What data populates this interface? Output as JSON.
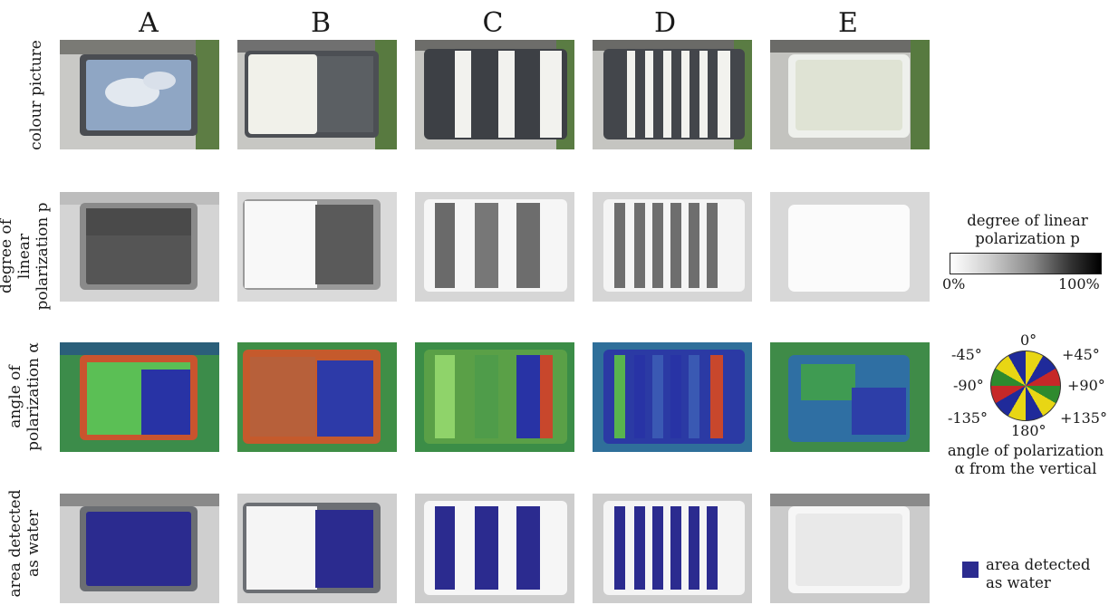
{
  "columns": [
    "A",
    "B",
    "C",
    "D",
    "E"
  ],
  "rows": [
    {
      "line1": "colour picture",
      "line2": ""
    },
    {
      "line1": "degree of linear",
      "line2": "polarization p"
    },
    {
      "line1": "angle of",
      "line2": "polarization α"
    },
    {
      "line1": "area detected",
      "line2": "as water"
    }
  ],
  "legend_p": {
    "title1": "degree of linear",
    "title2": "polarization p",
    "min": "0%",
    "max": "100%"
  },
  "legend_alpha": {
    "labels": {
      "top": "0°",
      "top_left": "-45°",
      "top_right": "+45°",
      "left": "-90°",
      "right": "+90°",
      "bottom_left": "-135°",
      "bottom": "180°",
      "bottom_right": "+135°"
    },
    "caption1": "angle of polarization",
    "caption2": "α from the vertical"
  },
  "legend_water": {
    "line1": "area detected",
    "line2": "as water",
    "color": "#2b2b8f"
  },
  "colors": {
    "water_blue": "#2b2b8f",
    "aop_green": "#3ea23e",
    "aop_red": "#c9442a",
    "aop_blue": "#2833a5"
  }
}
